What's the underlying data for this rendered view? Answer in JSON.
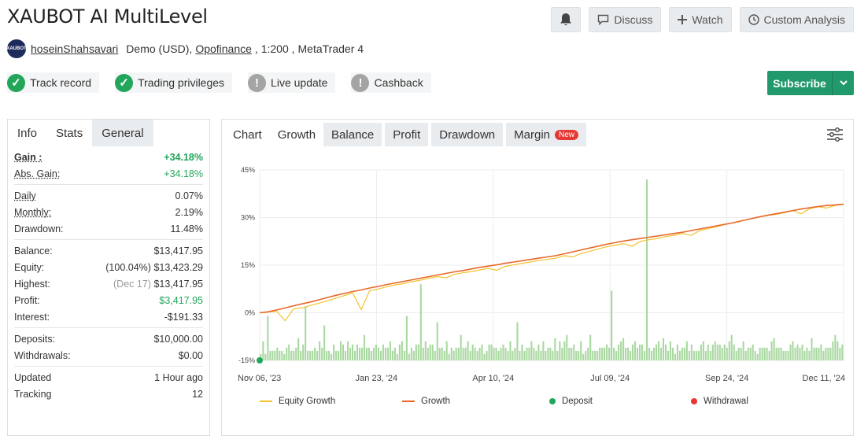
{
  "header": {
    "title": "XAUBOT AI MultiLevel",
    "discuss_label": "Discuss",
    "watch_label": "Watch",
    "custom_analysis_label": "Custom Analysis"
  },
  "account": {
    "avatar_text": "XAUBOT",
    "username": "hoseinShahsavari",
    "type": "Demo (USD),",
    "broker": "Opofinance",
    "leverage": ", 1:200 ,",
    "platform": "MetaTrader 4"
  },
  "badges": [
    {
      "label": "Track record",
      "status": "ok"
    },
    {
      "label": "Trading privileges",
      "status": "ok"
    },
    {
      "label": "Live update",
      "status": "warn"
    },
    {
      "label": "Cashback",
      "status": "warn"
    }
  ],
  "subscribe_label": "Subscribe",
  "stats_tabs": [
    "Info",
    "Stats",
    "General"
  ],
  "stats": {
    "gain_label": "Gain :",
    "gain": "+34.18%",
    "abs_gain_label": "Abs. Gain:",
    "abs_gain": "+34.18%",
    "daily_label": "Daily",
    "daily": "0.07%",
    "monthly_label": "Monthly:",
    "monthly": "2.19%",
    "drawdown_label": "Drawdown:",
    "drawdown": "11.48%",
    "balance_label": "Balance:",
    "balance": "$13,417.95",
    "equity_label": "Equity:",
    "equity_pct": "(100.04%)",
    "equity": "$13,423.29",
    "highest_label": "Highest:",
    "highest_date": "(Dec 17)",
    "highest": "$13,417.95",
    "profit_label": "Profit:",
    "profit": "$3,417.95",
    "interest_label": "Interest:",
    "interest": "-$191.33",
    "deposits_label": "Deposits:",
    "deposits": "$10,000.00",
    "withdrawals_label": "Withdrawals:",
    "withdrawals": "$0.00",
    "updated_label": "Updated",
    "updated": "1 Hour ago",
    "tracking_label": "Tracking",
    "tracking": "12"
  },
  "chart_tabs": {
    "chart": "Chart",
    "growth": "Growth",
    "balance": "Balance",
    "profit": "Profit",
    "drawdown": "Drawdown",
    "margin": "Margin",
    "new_badge": "New"
  },
  "colors": {
    "equity_growth": "#f2c22c",
    "growth": "#e8682a",
    "deposit": "#21a65a",
    "withdrawal": "#e53935",
    "bars": "#a9d8a0"
  },
  "chart_data": {
    "type": "line",
    "ylim": [
      -15,
      45
    ],
    "yticks": [
      "45%",
      "30%",
      "15%",
      "0%",
      "-15%"
    ],
    "ytick_values": [
      45,
      30,
      15,
      0,
      -15
    ],
    "xticks": [
      "Nov 06, '23",
      "Jan 23, '24",
      "Apr 10, '24",
      "Jul 09, '24",
      "Sep 24, '24",
      "Dec 11, '24"
    ],
    "xtick_positions": [
      0,
      0.2,
      0.4,
      0.6,
      0.8,
      1.0
    ],
    "series": [
      {
        "name": "Equity Growth",
        "values": [
          0,
          0.2,
          0.5,
          -2.5,
          1.2,
          1.5,
          2.3,
          3.0,
          3.8,
          4.6,
          5.4,
          6.2,
          1.0,
          7.0,
          7.5,
          8.2,
          8.8,
          9.2,
          9.8,
          10.3,
          10.9,
          11.4,
          11.0,
          12.1,
          12.6,
          13.0,
          13.5,
          14.0,
          13.4,
          14.6,
          15.1,
          15.6,
          16.0,
          16.5,
          16.8,
          17.2,
          18.0,
          17.6,
          18.7,
          19.4,
          20.1,
          20.8,
          21.3,
          21.8,
          21.0,
          22.5,
          23.0,
          23.4,
          24.0,
          24.4,
          25.0,
          24.4,
          25.9,
          26.5,
          27.1,
          27.8,
          28.4,
          29.0,
          29.6,
          30.2,
          30.8,
          31.0,
          31.5,
          32.2,
          31.2,
          32.8,
          33.4,
          33.0,
          33.8,
          34.2
        ]
      },
      {
        "name": "Growth",
        "values": [
          0,
          0.3,
          0.9,
          1.5,
          2.2,
          2.8,
          3.4,
          4.1,
          4.8,
          5.5,
          6.1,
          6.7,
          7.2,
          7.8,
          8.3,
          8.9,
          9.4,
          9.9,
          10.4,
          10.9,
          11.4,
          11.9,
          12.4,
          12.9,
          13.3,
          13.8,
          14.3,
          14.7,
          15.1,
          15.6,
          16.0,
          16.4,
          16.8,
          17.2,
          17.6,
          18.0,
          18.6,
          19.2,
          19.8,
          20.4,
          21.0,
          21.6,
          22.1,
          22.6,
          23.0,
          23.4,
          23.8,
          24.2,
          24.6,
          25.0,
          25.4,
          25.9,
          26.4,
          26.9,
          27.4,
          27.9,
          28.4,
          29.0,
          29.6,
          30.2,
          30.7,
          31.2,
          31.7,
          32.2,
          32.7,
          33.1,
          33.5,
          33.8,
          34.0,
          34.18
        ]
      }
    ],
    "bars_values": [
      2,
      6,
      2,
      14,
      3,
      3,
      3,
      4,
      3,
      3,
      2,
      4,
      5,
      3,
      3,
      4,
      7,
      3,
      5,
      17,
      3,
      3,
      3,
      4,
      3,
      6,
      4,
      11,
      3,
      3,
      2,
      5,
      3,
      3,
      6,
      5,
      3,
      6,
      4,
      5,
      3,
      5,
      4,
      4,
      8,
      4,
      4,
      3,
      4,
      5,
      4,
      3,
      5,
      4,
      4,
      6,
      3,
      4,
      2,
      5,
      6,
      3,
      14,
      2,
      4,
      3,
      5,
      5,
      24,
      4,
      6,
      4,
      5,
      5,
      3,
      12,
      4,
      4,
      3,
      6,
      2,
      4,
      3,
      4,
      4,
      8,
      4,
      4,
      6,
      3,
      5,
      4,
      3,
      4,
      5,
      2,
      3,
      5,
      5,
      4,
      4,
      3,
      4,
      5,
      4,
      3,
      6,
      3,
      4,
      12,
      3,
      5,
      3,
      4,
      4,
      6,
      4,
      3,
      5,
      3,
      6,
      3,
      4,
      4,
      3,
      7,
      3,
      6,
      4,
      6,
      8,
      4,
      4,
      5,
      3,
      3,
      6,
      2,
      3,
      4,
      8,
      3,
      3,
      3,
      4,
      4,
      4,
      5,
      4,
      22,
      4,
      3,
      5,
      6,
      7,
      4,
      4,
      3,
      5,
      6,
      4,
      5,
      5,
      3,
      57,
      4,
      3,
      4,
      5,
      6,
      4,
      7,
      5,
      3,
      6,
      4,
      2,
      5,
      3,
      4,
      4,
      6,
      3,
      5,
      3,
      3,
      3,
      5,
      6,
      3,
      5,
      3,
      5,
      6,
      5,
      5,
      4,
      5,
      4,
      6,
      8,
      5,
      3,
      4,
      4,
      6,
      3,
      4,
      4,
      5,
      3,
      2,
      4,
      4,
      4,
      4,
      3,
      6,
      7,
      4,
      4,
      4,
      3,
      3,
      3,
      5,
      6,
      4,
      5,
      4,
      5,
      3,
      4,
      3,
      7,
      4,
      4,
      4,
      5,
      3,
      4,
      4,
      4,
      6,
      8,
      6,
      4,
      5
    ],
    "legend": [
      "Equity Growth",
      "Growth",
      "Deposit",
      "Withdrawal"
    ],
    "deposit_points": [
      {
        "x": 0,
        "y": -15
      }
    ]
  }
}
